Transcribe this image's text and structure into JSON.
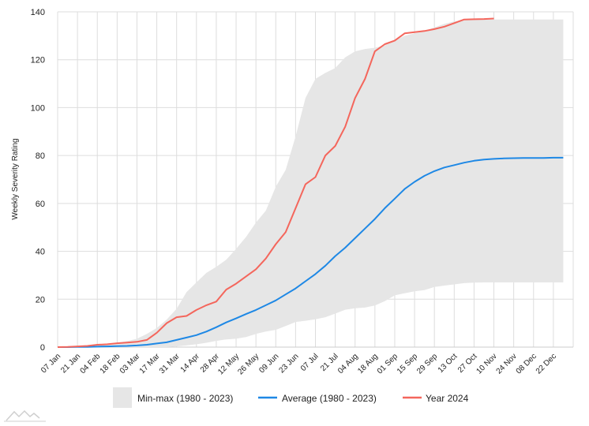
{
  "chart_data": {
    "type": "line",
    "title": "",
    "xlabel": "",
    "ylabel": "Weekly Severity Rating",
    "ylim": [
      0,
      140
    ],
    "yticks": [
      "0",
      "20",
      "40",
      "60",
      "80",
      "100",
      "120",
      "140"
    ],
    "grid": true,
    "legend_position": "bottom-center",
    "x_tick_labels": [
      "07 Jan",
      "21 Jan",
      "04 Feb",
      "18 Feb",
      "03 Mar",
      "17 Mar",
      "31 Mar",
      "14 Apr",
      "28 Apr",
      "12 May",
      "26 May",
      "09 Jun",
      "23 Jun",
      "07 Jul",
      "21 Jul",
      "04 Aug",
      "18 Aug",
      "01 Sep",
      "15 Sep",
      "29 Sep",
      "13 Oct",
      "27 Oct",
      "10 Nov",
      "24 Nov",
      "08 Dec",
      "22 Dec"
    ],
    "week_count": 52,
    "series": [
      {
        "name": "Min-max (1980 - 2023)",
        "kind": "band",
        "color": "#e6e6e6",
        "min": [
          0,
          0,
          0,
          0,
          0,
          0,
          0,
          0,
          0,
          0,
          0,
          0,
          0.3,
          0.7,
          1.2,
          1.8,
          2.6,
          3.2,
          3.5,
          4.2,
          5.5,
          6.5,
          7.2,
          8.8,
          10.5,
          11.0,
          11.6,
          12.5,
          14.0,
          15.6,
          16.2,
          16.5,
          17.4,
          19.2,
          21.6,
          22.5,
          23.3,
          23.8,
          25.1,
          25.7,
          26.2,
          26.7,
          26.9,
          27.0,
          27.0,
          27.0,
          27.0,
          27.0,
          27.0,
          27.0,
          27.0,
          27.0
        ],
        "max": [
          0,
          0.2,
          0.4,
          0.6,
          1.0,
          1.4,
          1.8,
          2.5,
          3.5,
          5.5,
          8.0,
          11.5,
          16.0,
          23.0,
          27.0,
          31.0,
          33.5,
          36.5,
          41.0,
          46.0,
          52.0,
          57.0,
          67.0,
          74.0,
          88.0,
          104.0,
          112.0,
          114.5,
          116.5,
          121.0,
          123.5,
          124.5,
          125.0,
          126.0,
          128.0,
          130.0,
          131.0,
          132.0,
          133.5,
          135.0,
          136.0,
          136.5,
          136.8,
          136.8,
          136.8,
          136.8,
          136.8,
          136.8,
          136.8,
          136.8,
          136.8,
          136.8
        ]
      },
      {
        "name": "Average (1980 - 2023)",
        "kind": "line",
        "color": "#1e88e5",
        "values": [
          0,
          0,
          0.1,
          0.1,
          0.2,
          0.3,
          0.4,
          0.5,
          0.7,
          1.0,
          1.5,
          2.0,
          3.0,
          4.0,
          5.0,
          6.5,
          8.3,
          10.3,
          12.0,
          13.8,
          15.5,
          17.5,
          19.5,
          22.0,
          24.5,
          27.5,
          30.5,
          34.0,
          38.0,
          41.5,
          45.5,
          49.5,
          53.5,
          58.0,
          62.0,
          66.0,
          69.0,
          71.5,
          73.5,
          75.0,
          76.0,
          77.0,
          77.8,
          78.3,
          78.6,
          78.8,
          78.9,
          79.0,
          79.0,
          79.0,
          79.1,
          79.1
        ]
      },
      {
        "name": "Year 2024",
        "kind": "line",
        "color": "#f4665c",
        "values": [
          0,
          0.1,
          0.3,
          0.5,
          1.0,
          1.2,
          1.6,
          1.9,
          2.2,
          3.0,
          6.0,
          10.0,
          12.5,
          13.0,
          15.5,
          17.5,
          19.0,
          24.0,
          26.5,
          29.5,
          32.5,
          37.0,
          43.0,
          48.0,
          58.0,
          68.0,
          71.0,
          80.0,
          84.0,
          92.0,
          104.0,
          112.0,
          123.5,
          126.5,
          128.0,
          131.0,
          131.5,
          132.0,
          132.8,
          133.8,
          135.3,
          136.8,
          136.9,
          137.0,
          137.2
        ]
      }
    ]
  }
}
